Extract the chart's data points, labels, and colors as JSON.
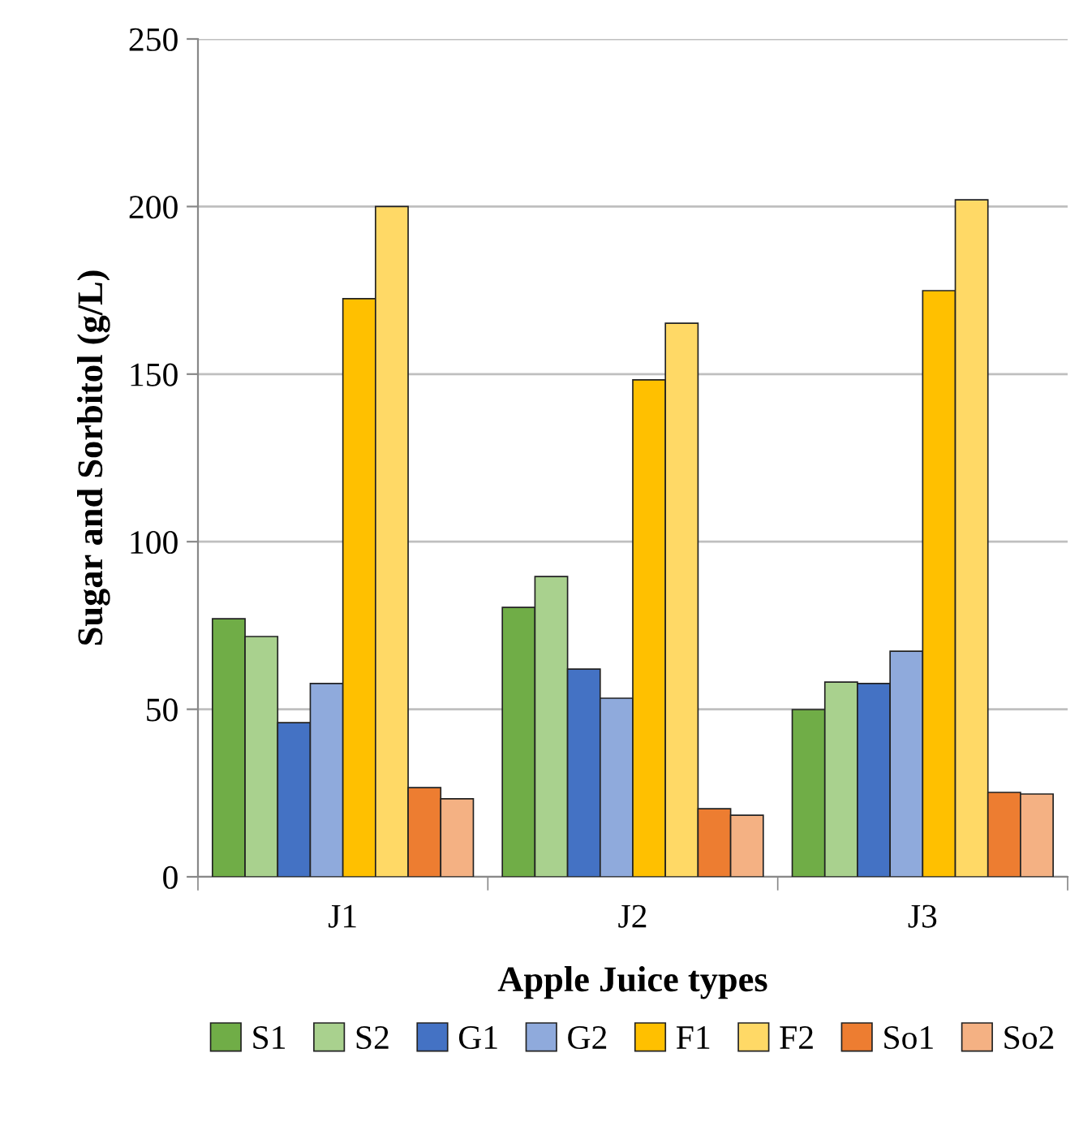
{
  "chart_data": {
    "type": "bar",
    "xlabel": "Apple Juice types",
    "ylabel": "Sugar and Sorbitol (g/L)",
    "categories": [
      "J1",
      "J2",
      "J3"
    ],
    "series": [
      {
        "name": "S1",
        "color": "#70ad47",
        "values": [
          77,
          80.4,
          49.9
        ]
      },
      {
        "name": "S2",
        "color": "#a9d18e",
        "values": [
          71.7,
          89.6,
          58.1
        ]
      },
      {
        "name": "G1",
        "color": "#4472c4",
        "values": [
          46,
          62,
          57.7
        ]
      },
      {
        "name": "G2",
        "color": "#8faadc",
        "values": [
          57.7,
          53.3,
          67.3
        ]
      },
      {
        "name": "F1",
        "color": "#ffc000",
        "values": [
          172.5,
          148.3,
          174.9
        ]
      },
      {
        "name": "F2",
        "color": "#ffd966",
        "values": [
          200,
          165.2,
          202
        ]
      },
      {
        "name": "So1",
        "color": "#ed7d31",
        "values": [
          26.6,
          20.3,
          25.2
        ]
      },
      {
        "name": "So2",
        "color": "#f4b183",
        "values": [
          23.3,
          18.4,
          24.7
        ]
      }
    ],
    "ylim": [
      0,
      250
    ],
    "yticks": [
      0,
      50,
      100,
      150,
      200,
      250
    ],
    "grid": "y",
    "legend": "bottom"
  }
}
